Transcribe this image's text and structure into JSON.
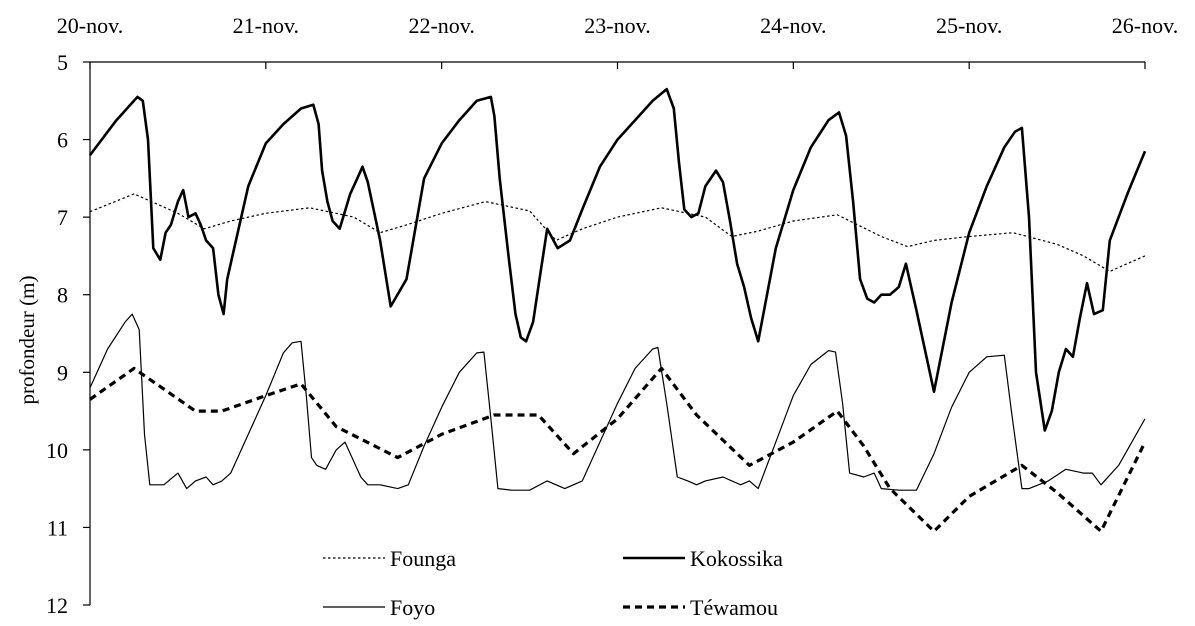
{
  "chart_data": {
    "type": "line",
    "title": "",
    "xlabel": "",
    "ylabel": "profondeur (m)",
    "y_reversed": true,
    "ylim": [
      5,
      12
    ],
    "y_ticks": [
      "5",
      "6",
      "7",
      "8",
      "9",
      "10",
      "11",
      "12"
    ],
    "x_unit": "days since 20-nov.",
    "xlim": [
      0,
      6
    ],
    "x_tick_labels": [
      "20-nov.",
      "21-nov.",
      "22-nov.",
      "23-nov.",
      "24-nov.",
      "25-nov.",
      "26-nov."
    ],
    "x_axis_position": "top",
    "grid": false,
    "legend": {
      "placement": "bottom-center",
      "entries": [
        "Founga",
        "Kokossika",
        "Foyo",
        "Téwamou"
      ]
    },
    "series": [
      {
        "name": "Founga",
        "style": "dotted-thin",
        "x": [
          0.0,
          0.25,
          0.5,
          0.65,
          0.8,
          1.0,
          1.25,
          1.5,
          1.65,
          1.8,
          2.0,
          2.25,
          2.5,
          2.65,
          2.8,
          3.0,
          3.25,
          3.5,
          3.65,
          3.8,
          4.0,
          4.25,
          4.5,
          4.65,
          4.8,
          5.0,
          5.25,
          5.5,
          5.65,
          5.8,
          6.0
        ],
        "y": [
          6.93,
          6.7,
          6.95,
          7.15,
          7.05,
          6.95,
          6.88,
          7.0,
          7.2,
          7.1,
          6.95,
          6.8,
          6.92,
          7.3,
          7.15,
          7.0,
          6.88,
          7.0,
          7.25,
          7.18,
          7.05,
          6.97,
          7.25,
          7.38,
          7.3,
          7.25,
          7.2,
          7.35,
          7.5,
          7.7,
          7.5
        ]
      },
      {
        "name": "Kokossika",
        "style": "solid-thick",
        "x": [
          0.0,
          0.15,
          0.27,
          0.3,
          0.33,
          0.36,
          0.4,
          0.43,
          0.46,
          0.5,
          0.53,
          0.56,
          0.6,
          0.63,
          0.66,
          0.7,
          0.73,
          0.76,
          0.78,
          0.82,
          0.9,
          1.0,
          1.1,
          1.2,
          1.27,
          1.3,
          1.32,
          1.35,
          1.38,
          1.42,
          1.48,
          1.52,
          1.55,
          1.58,
          1.65,
          1.71,
          1.8,
          1.9,
          2.0,
          2.1,
          2.2,
          2.28,
          2.3,
          2.33,
          2.38,
          2.42,
          2.45,
          2.48,
          2.52,
          2.56,
          2.6,
          2.66,
          2.73,
          2.8,
          2.9,
          3.0,
          3.1,
          3.2,
          3.28,
          3.32,
          3.35,
          3.38,
          3.42,
          3.46,
          3.5,
          3.56,
          3.6,
          3.64,
          3.68,
          3.72,
          3.76,
          3.8,
          3.9,
          4.0,
          4.1,
          4.2,
          4.26,
          4.3,
          4.34,
          4.38,
          4.42,
          4.46,
          4.5,
          4.55,
          4.6,
          4.64,
          4.7,
          4.8,
          4.9,
          5.0,
          5.1,
          5.2,
          5.26,
          5.3,
          5.34,
          5.38,
          5.43,
          5.47,
          5.51,
          5.55,
          5.59,
          5.63,
          5.67,
          5.71,
          5.76,
          5.8,
          5.9,
          6.0
        ],
        "y": [
          6.2,
          5.75,
          5.45,
          5.5,
          6.0,
          7.4,
          7.55,
          7.2,
          7.1,
          6.8,
          6.65,
          7.0,
          6.95,
          7.1,
          7.3,
          7.4,
          8.0,
          8.25,
          7.8,
          7.4,
          6.6,
          6.05,
          5.8,
          5.6,
          5.55,
          5.8,
          6.4,
          6.8,
          7.05,
          7.15,
          6.7,
          6.5,
          6.35,
          6.55,
          7.3,
          8.15,
          7.8,
          6.5,
          6.05,
          5.75,
          5.5,
          5.45,
          5.7,
          6.5,
          7.5,
          8.25,
          8.55,
          8.6,
          8.35,
          7.75,
          7.15,
          7.4,
          7.3,
          6.9,
          6.35,
          6.0,
          5.75,
          5.5,
          5.35,
          5.6,
          6.3,
          6.9,
          7.0,
          6.95,
          6.6,
          6.4,
          6.55,
          7.05,
          7.6,
          7.9,
          8.3,
          8.6,
          7.4,
          6.65,
          6.1,
          5.75,
          5.65,
          5.95,
          6.8,
          7.8,
          8.05,
          8.1,
          8.0,
          8.0,
          7.9,
          7.6,
          8.2,
          9.25,
          8.1,
          7.2,
          6.6,
          6.1,
          5.9,
          5.85,
          7.0,
          9.0,
          9.75,
          9.5,
          9.0,
          8.7,
          8.8,
          8.3,
          7.85,
          8.25,
          8.2,
          7.3,
          6.7,
          6.15
        ]
      },
      {
        "name": "Foyo",
        "style": "solid-thin",
        "x": [
          0.0,
          0.1,
          0.2,
          0.24,
          0.28,
          0.31,
          0.34,
          0.42,
          0.5,
          0.55,
          0.6,
          0.66,
          0.7,
          0.75,
          0.8,
          0.9,
          1.0,
          1.1,
          1.15,
          1.2,
          1.23,
          1.26,
          1.29,
          1.34,
          1.4,
          1.45,
          1.5,
          1.54,
          1.58,
          1.65,
          1.75,
          1.81,
          1.9,
          2.0,
          2.1,
          2.2,
          2.24,
          2.28,
          2.32,
          2.4,
          2.5,
          2.6,
          2.7,
          2.8,
          2.9,
          3.0,
          3.1,
          3.2,
          3.23,
          3.28,
          3.34,
          3.4,
          3.45,
          3.5,
          3.6,
          3.7,
          3.75,
          3.8,
          3.9,
          4.0,
          4.1,
          4.2,
          4.24,
          4.28,
          4.32,
          4.4,
          4.46,
          4.5,
          4.6,
          4.7,
          4.8,
          4.9,
          5.0,
          5.1,
          5.2,
          5.24,
          5.3,
          5.34,
          5.45,
          5.55,
          5.65,
          5.7,
          5.75,
          5.85,
          5.9,
          6.0
        ],
        "y": [
          9.2,
          8.7,
          8.35,
          8.25,
          8.45,
          9.8,
          10.45,
          10.45,
          10.3,
          10.5,
          10.4,
          10.35,
          10.45,
          10.4,
          10.3,
          9.8,
          9.3,
          8.75,
          8.62,
          8.6,
          9.3,
          10.1,
          10.2,
          10.25,
          10.0,
          9.9,
          10.15,
          10.35,
          10.45,
          10.45,
          10.5,
          10.45,
          9.95,
          9.45,
          9.0,
          8.75,
          8.74,
          9.6,
          10.5,
          10.52,
          10.52,
          10.4,
          10.5,
          10.4,
          9.9,
          9.4,
          8.95,
          8.7,
          8.68,
          9.4,
          10.35,
          10.4,
          10.45,
          10.4,
          10.35,
          10.45,
          10.4,
          10.5,
          9.9,
          9.3,
          8.9,
          8.72,
          8.74,
          9.4,
          10.3,
          10.35,
          10.3,
          10.5,
          10.52,
          10.52,
          10.05,
          9.45,
          9.0,
          8.8,
          8.78,
          9.5,
          10.5,
          10.5,
          10.4,
          10.25,
          10.3,
          10.3,
          10.45,
          10.2,
          10.0,
          9.6
        ]
      },
      {
        "name": "Téwamou",
        "style": "dashed-thick",
        "x": [
          0.0,
          0.25,
          0.6,
          0.75,
          1.0,
          1.2,
          1.4,
          1.75,
          2.0,
          2.3,
          2.55,
          2.75,
          3.0,
          3.25,
          3.45,
          3.75,
          4.0,
          4.25,
          4.4,
          4.55,
          4.8,
          5.0,
          5.3,
          5.5,
          5.75,
          6.0
        ],
        "y": [
          9.35,
          8.95,
          9.5,
          9.5,
          9.3,
          9.15,
          9.7,
          10.1,
          9.8,
          9.55,
          9.55,
          10.05,
          9.6,
          8.95,
          9.55,
          10.2,
          9.9,
          9.5,
          9.95,
          10.5,
          11.05,
          10.6,
          10.2,
          10.55,
          11.05,
          9.9
        ]
      }
    ]
  }
}
